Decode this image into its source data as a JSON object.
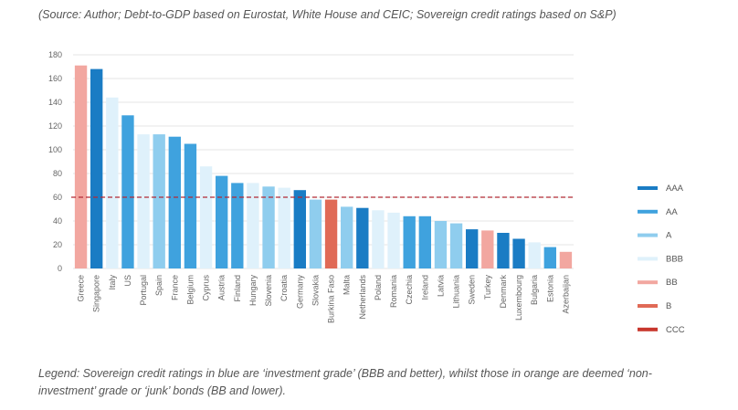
{
  "source_text": "(Source: Author; Debt-to-GDP based on Eurostat, White House and CEIC; Sovereign credit ratings based on S&P)",
  "note_text": "Legend: Sovereign credit ratings in blue are ‘investment grade’ (BBB and better), whilst those in orange are deemed ‘non-investment’ grade or ‘junk’ bonds (BB and lower).",
  "colors": {
    "AAA": "#1a7cc4",
    "AA": "#3fa2de",
    "A": "#8fcdee",
    "BBB": "#dff1fb",
    "BB": "#f2a7a0",
    "B": "#e06a56",
    "CCC": "#c8372d",
    "threshold": "#b22a35"
  },
  "chart_data": {
    "type": "bar",
    "title": "",
    "xlabel": "",
    "ylabel": "",
    "ylim": [
      0,
      180
    ],
    "yticks": [
      0,
      20,
      40,
      60,
      80,
      100,
      120,
      140,
      160,
      180
    ],
    "grid": true,
    "threshold": 60,
    "categories": [
      "Greece",
      "Singapore",
      "Italy",
      "US",
      "Portugal",
      "Spain",
      "France",
      "Belgium",
      "Cyprus",
      "Austria",
      "Finland",
      "Hungary",
      "Slovenia",
      "Croatia",
      "Germany",
      "Slovakia",
      "Burkina Faso",
      "Malta",
      "Netherlands",
      "Poland",
      "Romania",
      "Czechia",
      "Ireland",
      "Latvia",
      "Lithuania",
      "Sweden",
      "Turkey",
      "Denmark",
      "Luxembourg",
      "Bulgaria",
      "Estonia",
      "Azerbaijan"
    ],
    "values": [
      171,
      168,
      144,
      129,
      113,
      113,
      111,
      105,
      86,
      78,
      72,
      72,
      69,
      68,
      66,
      58,
      58,
      52,
      51,
      49,
      47,
      44,
      44,
      40,
      38,
      33,
      32,
      30,
      25,
      22,
      18,
      14
    ],
    "ratings": [
      "BB",
      "AAA",
      "BBB",
      "AA",
      "BBB",
      "A",
      "AA",
      "AA",
      "BBB",
      "AA",
      "AA",
      "BBB",
      "A",
      "BBB",
      "AAA",
      "A",
      "B",
      "A",
      "AAA",
      "BBB",
      "BBB",
      "AA",
      "AA",
      "A",
      "A",
      "AAA",
      "BB",
      "AAA",
      "AAA",
      "BBB",
      "AA",
      "BB"
    ],
    "legend": [
      "AAA",
      "AA",
      "A",
      "BBB",
      "BB",
      "B",
      "CCC"
    ],
    "legend_position": "right"
  }
}
